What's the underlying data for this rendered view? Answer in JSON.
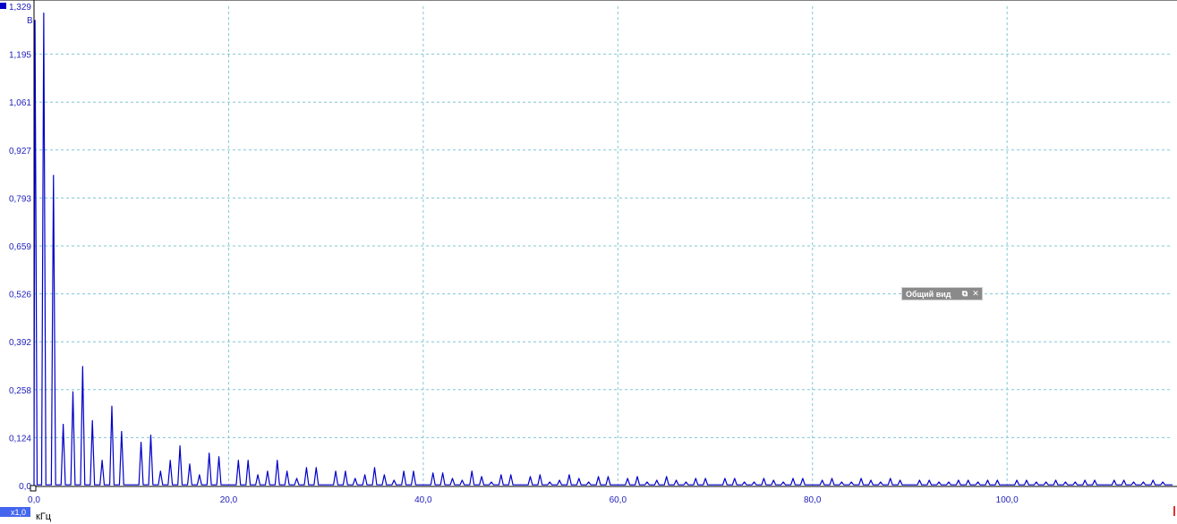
{
  "colors": {
    "trace": "#0000c8",
    "grid": "#7fc7d6",
    "axis": "#000000",
    "tick_text": "#2222bb",
    "x_scale_tag": "#4466ee",
    "overview_panel": "#8a8a8a",
    "right_marker": "#e03030"
  },
  "icons": {
    "y_corner_marker": "square-marker-icon",
    "x_origin_marker": "square-marker-icon",
    "overview_restore": "restore-window-icon",
    "overview_close": "close-icon"
  },
  "x_scale_tag": "x1,0",
  "overview_panel": {
    "title": "Общий вид",
    "restore_glyph": "⧉",
    "close_glyph": "✕"
  },
  "chart_data": {
    "type": "line",
    "ylabel": "В",
    "xlabel": "кГц",
    "ylim": [
      0.0,
      1.329
    ],
    "xlim": [
      0.0,
      117.0
    ],
    "grid": true,
    "y_tick_labels": [
      "1,329",
      "1,195",
      "1,061",
      "0,927",
      "0,793",
      "0,659",
      "0,526",
      "0,392",
      "0,258",
      "0,124",
      "0,0"
    ],
    "x_tick_labels": [
      "0,0",
      "20,0",
      "40,0",
      "60,0",
      "80,0",
      "100,0"
    ],
    "x_grid_values": [
      0,
      20,
      40,
      60,
      80,
      100
    ],
    "series": [
      {
        "peaks_khz": [
          0.1,
          1.0,
          2.0,
          3.0,
          4.0,
          5.0,
          6.0,
          7.0,
          8.0,
          9.0,
          11.0,
          12.0,
          13.0,
          14.0,
          15.0,
          16.0,
          17.0,
          18.0,
          19.0,
          21.0,
          22.0,
          23.0,
          24.0,
          25.0,
          26.0,
          27.0,
          28.0,
          29.0,
          31.0,
          32.0,
          33.0,
          34.0,
          35.0,
          36.0,
          37.0,
          38.0,
          39.0,
          41.0,
          42.0,
          43.0,
          44.0,
          45.0,
          46.0,
          47.0,
          48.0,
          49.0,
          51.0,
          52.0,
          53.0,
          54.0,
          55.0,
          56.0,
          57.0,
          58.0,
          59.0,
          61.0,
          62.0,
          63.0,
          64.0,
          65.0,
          66.0,
          67.0,
          68.0,
          69.0,
          71.0,
          72.0,
          73.0,
          74.0,
          75.0,
          76.0,
          77.0,
          78.0,
          79.0,
          81.0,
          82.0,
          83.0,
          84.0,
          85.0,
          86.0,
          87.0,
          88.0,
          89.0,
          91.0,
          92.0,
          93.0,
          94.0,
          95.0,
          96.0,
          97.0,
          98.0,
          99.0,
          101.0,
          102.0,
          103.0,
          104.0,
          105.0,
          106.0,
          107.0,
          108.0,
          109.0,
          111.0,
          112.0,
          113.0,
          114.0,
          115.0,
          116.0
        ],
        "peaks_v": [
          1.29,
          1.31,
          0.86,
          0.17,
          0.26,
          0.33,
          0.18,
          0.07,
          0.22,
          0.15,
          0.12,
          0.14,
          0.04,
          0.07,
          0.11,
          0.06,
          0.03,
          0.09,
          0.08,
          0.07,
          0.07,
          0.03,
          0.04,
          0.07,
          0.04,
          0.02,
          0.05,
          0.05,
          0.04,
          0.04,
          0.02,
          0.03,
          0.05,
          0.03,
          0.015,
          0.04,
          0.04,
          0.035,
          0.035,
          0.02,
          0.015,
          0.04,
          0.025,
          0.01,
          0.03,
          0.03,
          0.025,
          0.03,
          0.01,
          0.015,
          0.03,
          0.02,
          0.01,
          0.025,
          0.025,
          0.02,
          0.025,
          0.01,
          0.015,
          0.025,
          0.015,
          0.01,
          0.02,
          0.02,
          0.02,
          0.02,
          0.01,
          0.01,
          0.02,
          0.015,
          0.01,
          0.02,
          0.02,
          0.015,
          0.02,
          0.01,
          0.01,
          0.02,
          0.015,
          0.01,
          0.02,
          0.015,
          0.015,
          0.015,
          0.01,
          0.01,
          0.015,
          0.015,
          0.01,
          0.015,
          0.015,
          0.015,
          0.015,
          0.01,
          0.01,
          0.015,
          0.01,
          0.01,
          0.015,
          0.015,
          0.015,
          0.015,
          0.01,
          0.01,
          0.015,
          0.01
        ]
      }
    ]
  }
}
